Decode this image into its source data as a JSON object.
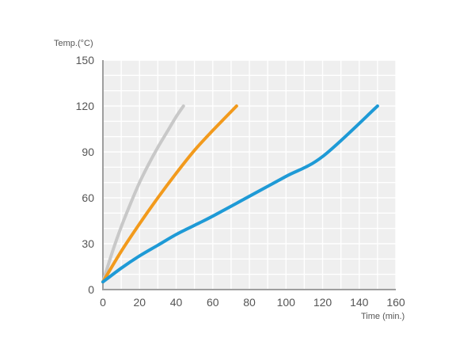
{
  "chart_data": {
    "type": "line",
    "ylabel": "Temp.(°C)",
    "xlabel": "Time (min.)",
    "xlim": [
      0,
      160
    ],
    "ylim": [
      0,
      150
    ],
    "x_ticks": [
      0,
      20,
      40,
      60,
      80,
      100,
      120,
      140,
      160
    ],
    "y_ticks": [
      0,
      30,
      60,
      90,
      120,
      150
    ],
    "grid": true,
    "series": [
      {
        "color": "#c8c8c8",
        "x": [
          0,
          5,
          10,
          15,
          20,
          25,
          30,
          35,
          40,
          44
        ],
        "y": [
          5,
          24,
          41,
          56,
          70,
          82,
          93,
          103,
          113,
          120
        ]
      },
      {
        "color": "#f29a1c",
        "x": [
          0,
          10,
          20,
          30,
          40,
          50,
          60,
          73
        ],
        "y": [
          5,
          25,
          43,
          60,
          76,
          91,
          104,
          120
        ]
      },
      {
        "color": "#1e9ad6",
        "x": [
          0,
          10,
          20,
          30,
          40,
          50,
          60,
          80,
          100,
          120,
          150
        ],
        "y": [
          5,
          14,
          22,
          29,
          36,
          42,
          48,
          61,
          74,
          87,
          120
        ]
      }
    ]
  }
}
